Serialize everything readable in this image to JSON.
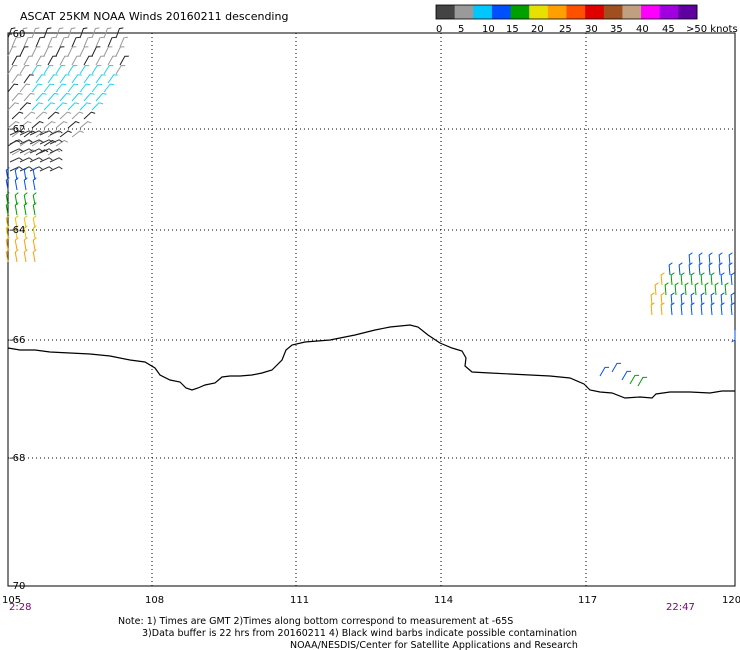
{
  "title": "ASCAT 25KM NOAA Winds 20160211 descending",
  "legend": {
    "labels": [
      "0",
      "5",
      "10",
      "15",
      "20",
      "25",
      "30",
      "35",
      "40",
      "45",
      ">50 knots"
    ],
    "colors": [
      "#444444",
      "#9a9a9a",
      "#00c8ff",
      "#0050ff",
      "#00a000",
      "#e8e000",
      "#ffa000",
      "#ff5000",
      "#e00000",
      "#a05020",
      "#c0a080",
      "#ff00ff",
      "#a000e0",
      "#6000a0"
    ]
  },
  "map": {
    "lat_labels": [
      "-60",
      "-62",
      "-64",
      "-66",
      "-68",
      "-70"
    ],
    "lon_labels": [
      "105",
      "108",
      "111",
      "114",
      "117",
      "120"
    ],
    "time_start": "2:28",
    "time_end": "22:47",
    "coastline_color": "#000000"
  },
  "notes": {
    "line1": "Note: 1) Times are GMT 2)Times along bottom correspond to measurement at -65S",
    "line2": "3)Data buffer is 22 hrs from 20160211 4) Black wind barbs indicate possible contamination",
    "line3": "NOAA/NESDIS/Center for Satellite Applications and Research"
  }
}
